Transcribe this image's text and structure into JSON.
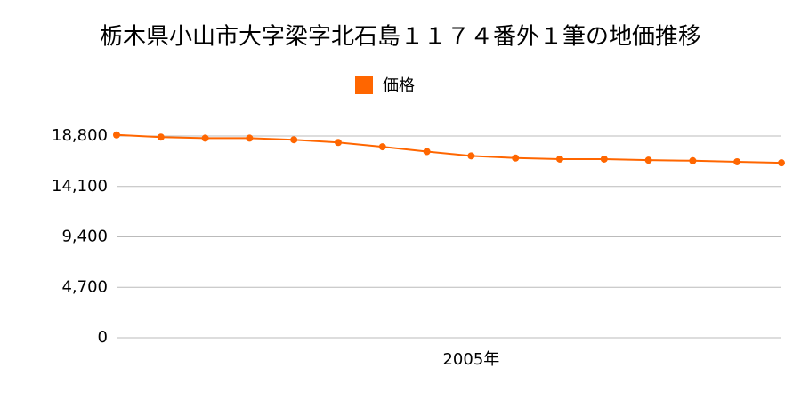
{
  "chart_data": {
    "type": "line",
    "title": "栃木県小山市大字梁字北石島１１７４番外１筆の地価推移",
    "categories": [
      null,
      null,
      null,
      null,
      null,
      null,
      null,
      null,
      "2005年",
      null,
      null,
      null,
      null,
      null,
      null,
      null
    ],
    "series": [
      {
        "name": "価格",
        "color": "#ff6600",
        "values": [
          18900,
          18700,
          18600,
          18600,
          18450,
          18200,
          17800,
          17350,
          16950,
          16750,
          16650,
          16650,
          16550,
          16500,
          16400,
          16300
        ]
      }
    ],
    "ylim": [
      0,
      18800
    ],
    "yticks": [
      0,
      {
        "value": 4700,
        "label": "4,700"
      },
      {
        "value": 9400,
        "label": "9,400"
      },
      {
        "value": 14100,
        "label": "14,100"
      },
      {
        "value": 18800,
        "label": "18,800"
      }
    ],
    "grid": true
  }
}
